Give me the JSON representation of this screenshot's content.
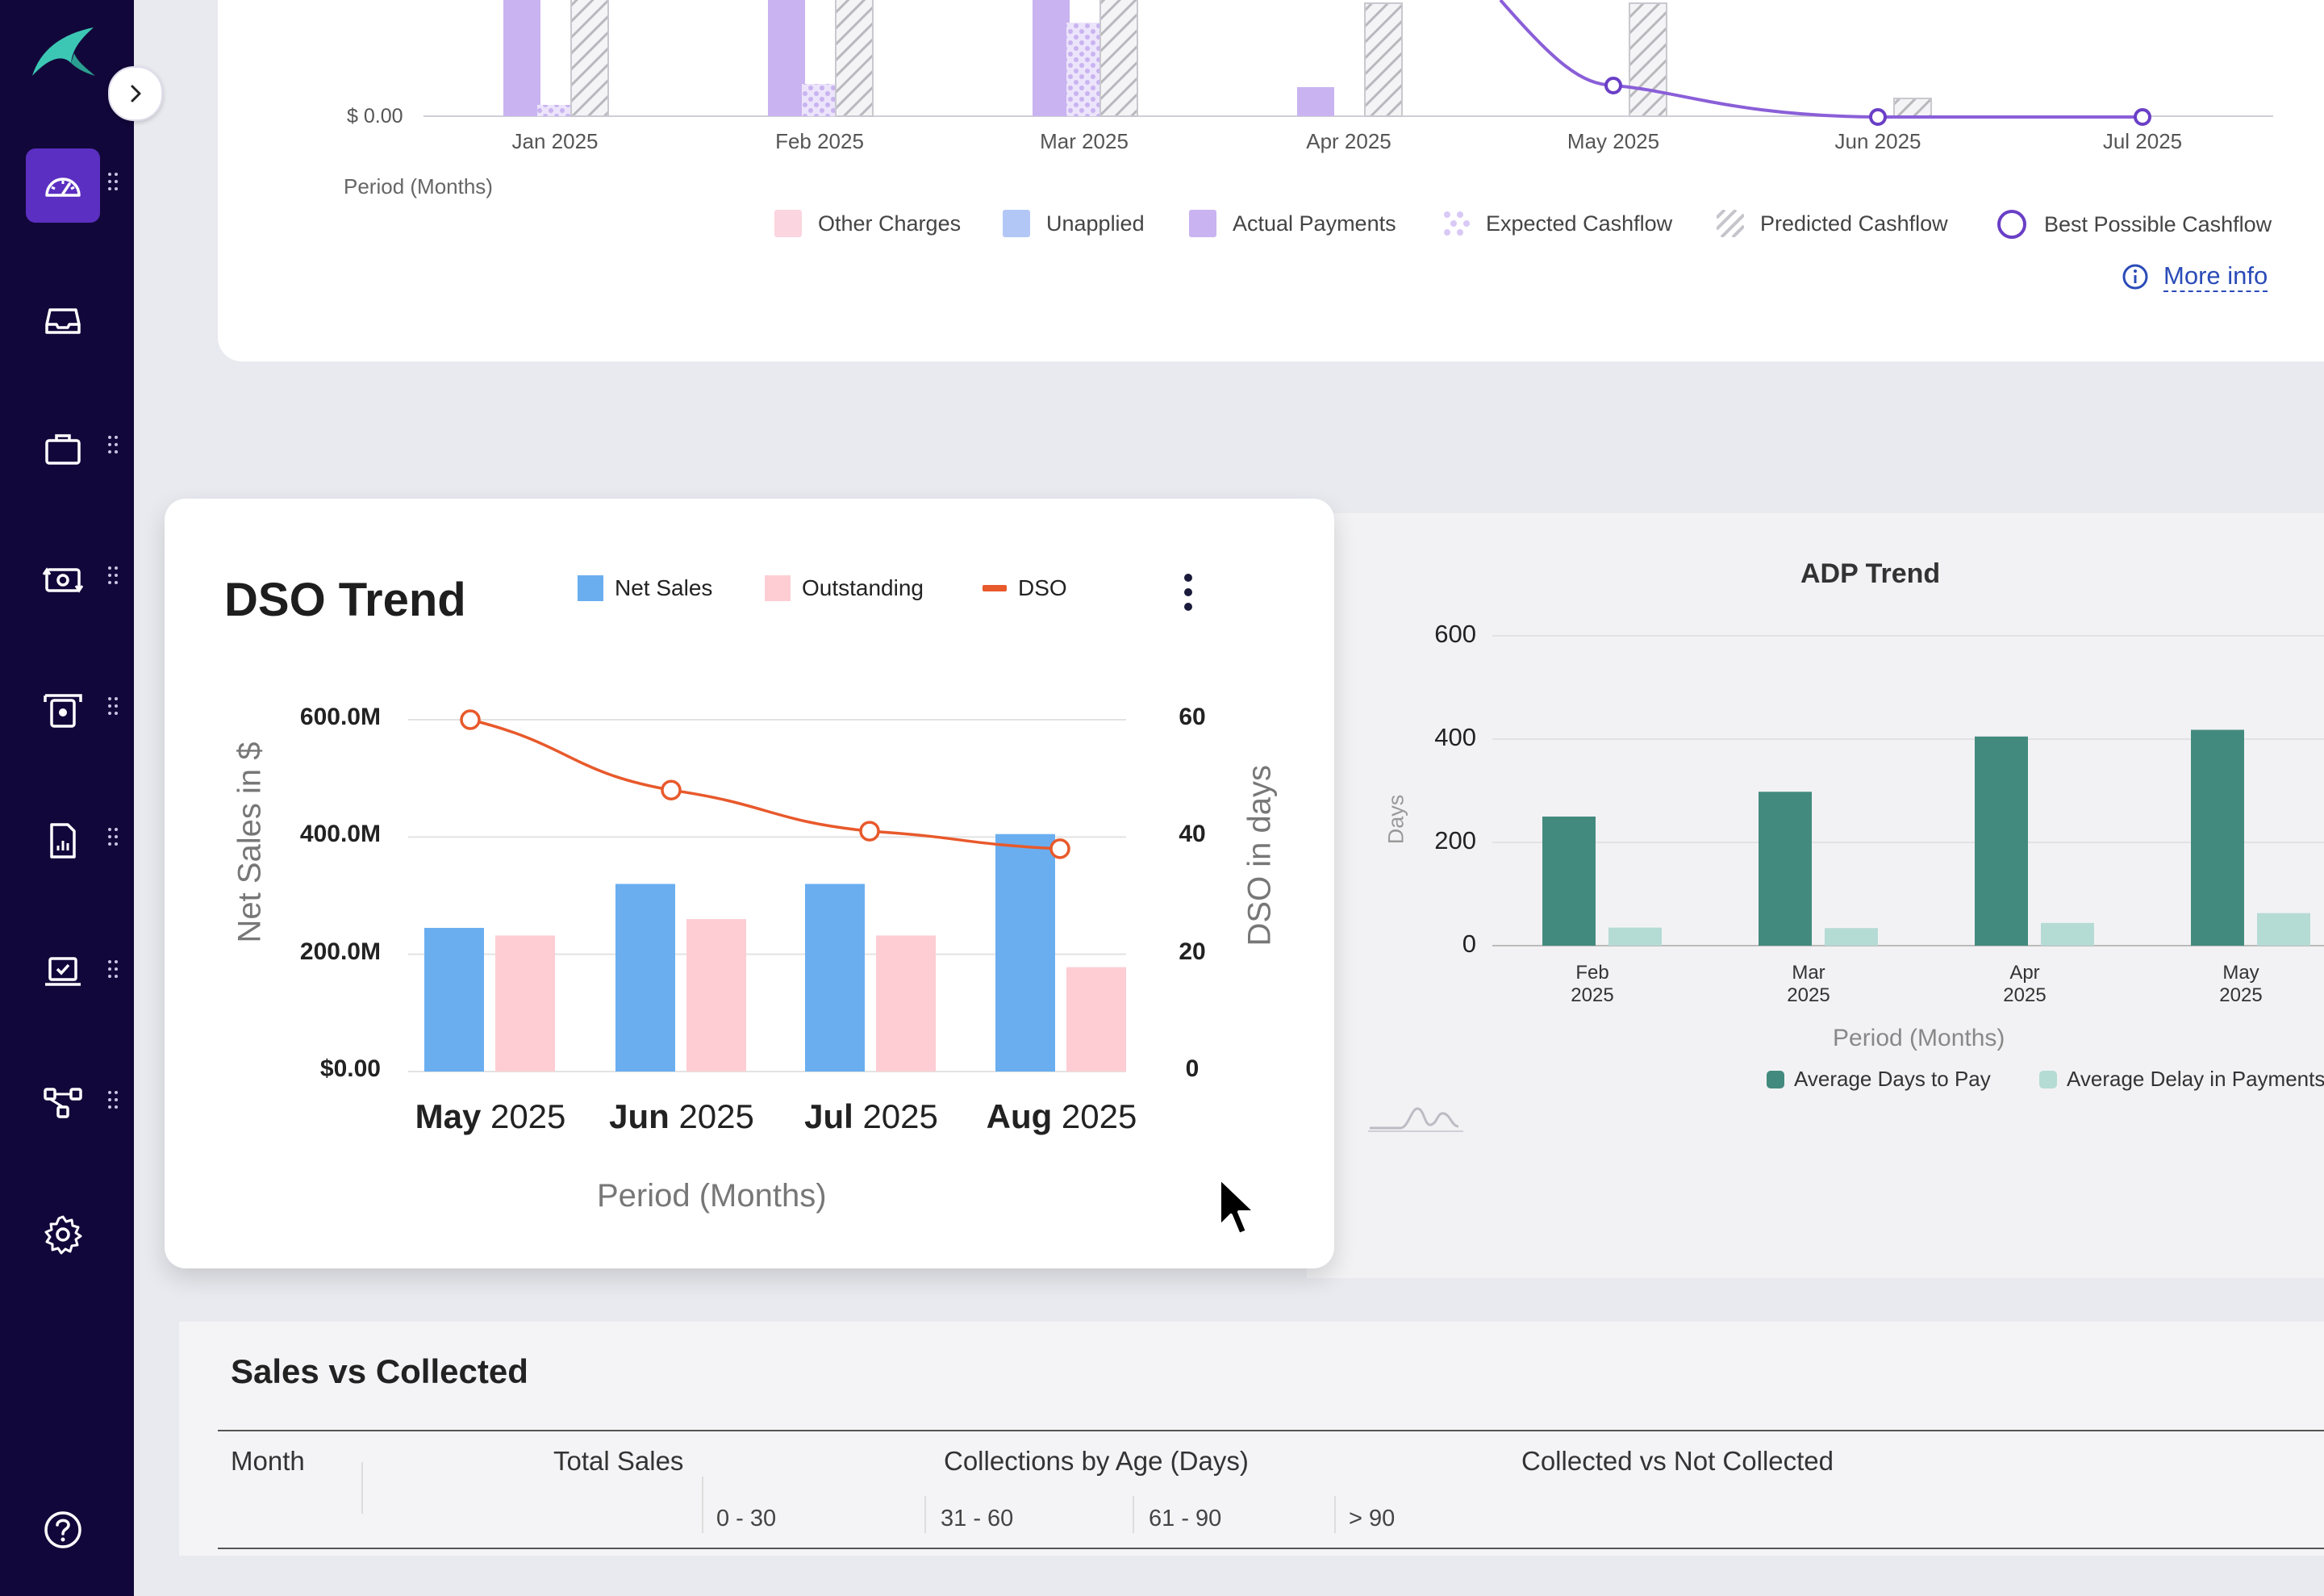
{
  "sidebar": {
    "items": [
      {
        "icon": "dashboard-gauge-icon",
        "active": true
      },
      {
        "icon": "inbox-icon"
      },
      {
        "icon": "briefcase-icon"
      },
      {
        "icon": "cash-exchange-icon"
      },
      {
        "icon": "atm-cash-icon"
      },
      {
        "icon": "report-document-icon"
      },
      {
        "icon": "laptop-check-icon"
      },
      {
        "icon": "workflow-icon"
      },
      {
        "icon": "settings-gear-icon"
      },
      {
        "icon": "help-icon"
      }
    ]
  },
  "cashflow": {
    "y_zero_label": "$ 0.00",
    "x_labels": [
      "Jan 2025",
      "Feb 2025",
      "Mar 2025",
      "Apr 2025",
      "May 2025",
      "Jun 2025",
      "Jul 2025"
    ],
    "x_axis_title": "Period (Months)",
    "legend": [
      "Other Charges",
      "Unapplied",
      "Actual Payments",
      "Expected Cashflow",
      "Predicted Cashflow",
      "Best Possible Cashflow"
    ],
    "more_info": "More info",
    "colors": {
      "other_charges": "#fbd5df",
      "unapplied": "#b3c7f7",
      "actual": "#c9b3f0",
      "best": "#6a3fc6"
    }
  },
  "dso": {
    "title": "DSO Trend",
    "legend": {
      "net_sales": "Net Sales",
      "outstanding": "Outstanding",
      "dso": "DSO"
    },
    "left_axis_title": "Net Sales in $",
    "right_axis_title": "DSO in days",
    "x_axis_title": "Period (Months)",
    "left_ticks": [
      "600.0M",
      "400.0M",
      "200.0M",
      "$0.00"
    ],
    "right_ticks": [
      "60",
      "40",
      "20",
      "0"
    ],
    "months": [
      {
        "month": "May",
        "year": "2025"
      },
      {
        "month": "Jun",
        "year": "2025"
      },
      {
        "month": "Jul",
        "year": "2025"
      },
      {
        "month": "Aug",
        "year": "2025"
      }
    ],
    "colors": {
      "net_sales": "#6aaef0",
      "outstanding": "#fdcdd3",
      "dso": "#e8592b"
    }
  },
  "adp": {
    "title": "ADP Trend",
    "y_title": "Days",
    "y_ticks": [
      "600",
      "400",
      "200",
      "0"
    ],
    "categories": [
      {
        "m": "Feb",
        "y": "2025"
      },
      {
        "m": "Mar",
        "y": "2025"
      },
      {
        "m": "Apr",
        "y": "2025"
      },
      {
        "m": "May",
        "y": "2025"
      }
    ],
    "x_title": "Period (Months)",
    "legend": [
      "Average Days to Pay",
      "Average Delay in Payments"
    ],
    "colors": {
      "days_to_pay": "#438a7e",
      "delay": "#b5dbd5"
    }
  },
  "sales": {
    "title": "Sales vs Collected",
    "columns": [
      "Month",
      "Total Sales",
      "Collections by Age (Days)",
      "Collected vs Not Collected"
    ],
    "age_buckets": [
      "0 - 30",
      "31 - 60",
      "61 - 90",
      "> 90"
    ]
  },
  "chart_data": [
    {
      "type": "bar",
      "title": "DSO Trend",
      "xlabel": "Period (Months)",
      "ylabel": "Net Sales in $",
      "y2label": "DSO in days",
      "categories": [
        "May 2025",
        "Jun 2025",
        "Jul 2025",
        "Aug 2025"
      ],
      "ylim": [
        0,
        600000000
      ],
      "y2lim": [
        0,
        60
      ],
      "series": [
        {
          "name": "Net Sales",
          "values": [
            245000000,
            320000000,
            320000000,
            405000000
          ]
        },
        {
          "name": "Outstanding",
          "values": [
            232000000,
            260000000,
            232000000,
            178000000
          ]
        },
        {
          "name": "DSO",
          "type": "line",
          "axis": "right",
          "values": [
            60,
            48,
            41,
            38
          ]
        }
      ],
      "legend_position": "top",
      "grid": true
    },
    {
      "type": "bar",
      "title": "ADP Trend",
      "xlabel": "Period (Months)",
      "ylabel": "Days",
      "categories": [
        "Feb 2025",
        "Mar 2025",
        "Apr 2025",
        "May 2025"
      ],
      "ylim": [
        0,
        600
      ],
      "series": [
        {
          "name": "Average Days to Pay",
          "values": [
            250,
            298,
            405,
            418
          ]
        },
        {
          "name": "Average Delay in Payments",
          "values": [
            35,
            34,
            44,
            63
          ]
        }
      ],
      "legend_position": "bottom",
      "grid": true
    }
  ]
}
